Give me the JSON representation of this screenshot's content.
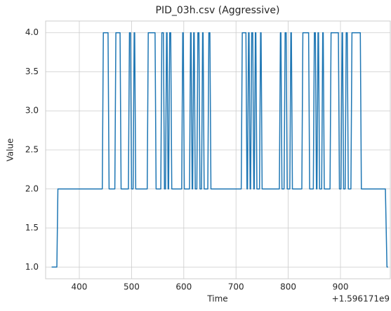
{
  "chart_data": {
    "type": "line",
    "title": "PID_03h.csv (Aggressive)",
    "x_label": "Time",
    "y_label": "Value",
    "x_offset_text": "+1.596171e9",
    "color": "#1f77b4",
    "grid": true,
    "xlim": [
      335.5,
      995.4
    ],
    "ylim": [
      0.85,
      4.15
    ],
    "xticks": [
      400,
      500,
      600,
      700,
      800,
      900
    ],
    "yticks": [
      {
        "value": 1,
        "label": "1.0"
      },
      {
        "value": 1.5,
        "label": "1.5"
      },
      {
        "value": 2,
        "label": "2.0"
      },
      {
        "value": 2.5,
        "label": "2.5"
      },
      {
        "value": 3,
        "label": "3.0"
      },
      {
        "value": 3.5,
        "label": "3.5"
      },
      {
        "value": 4,
        "label": "4.0"
      }
    ],
    "x": [
      347,
      357,
      359,
      444,
      446,
      455,
      457,
      468,
      470,
      478,
      480,
      494,
      496,
      498,
      500,
      503,
      505,
      506,
      508,
      530,
      532,
      545,
      547,
      556,
      558,
      561,
      563,
      565,
      567,
      568,
      570,
      571,
      573,
      575,
      577,
      596,
      598,
      599,
      601,
      611,
      613,
      614,
      616,
      617,
      619,
      620,
      622,
      625,
      627,
      629,
      631,
      634,
      636,
      637,
      639,
      646,
      648,
      650,
      652,
      710,
      712,
      719,
      721,
      722,
      724,
      725,
      727,
      728,
      730,
      732,
      734,
      735,
      737,
      738,
      740,
      745,
      747,
      748,
      750,
      783,
      785,
      786,
      788,
      792,
      794,
      796,
      798,
      803,
      805,
      806,
      808,
      826,
      828,
      839,
      841,
      848,
      850,
      852,
      854,
      855,
      857,
      858,
      860,
      864,
      866,
      867,
      869,
      880,
      882,
      896,
      898,
      901,
      903,
      904,
      906,
      909,
      911,
      913,
      915,
      920,
      922,
      938,
      940,
      986,
      989,
      991
    ],
    "values": [
      1,
      1,
      2,
      2,
      4,
      4,
      2,
      2,
      4,
      4,
      2,
      2,
      4,
      4,
      2,
      2,
      4,
      4,
      2,
      2,
      4,
      4,
      2,
      2,
      4,
      4,
      2,
      2,
      4,
      4,
      2,
      2,
      4,
      4,
      2,
      2,
      4,
      4,
      2,
      2,
      4,
      4,
      2,
      2,
      4,
      4,
      2,
      2,
      4,
      4,
      2,
      2,
      4,
      4,
      2,
      2,
      4,
      4,
      2,
      2,
      4,
      4,
      2,
      2,
      4,
      4,
      2,
      2,
      4,
      4,
      2,
      2,
      4,
      4,
      2,
      2,
      4,
      4,
      2,
      2,
      4,
      4,
      2,
      2,
      4,
      4,
      2,
      2,
      4,
      4,
      2,
      2,
      4,
      4,
      2,
      2,
      4,
      4,
      2,
      2,
      4,
      4,
      2,
      2,
      4,
      4,
      2,
      2,
      4,
      4,
      2,
      2,
      4,
      4,
      2,
      2,
      4,
      4,
      2,
      2,
      4,
      4,
      2,
      2,
      1,
      1
    ]
  }
}
